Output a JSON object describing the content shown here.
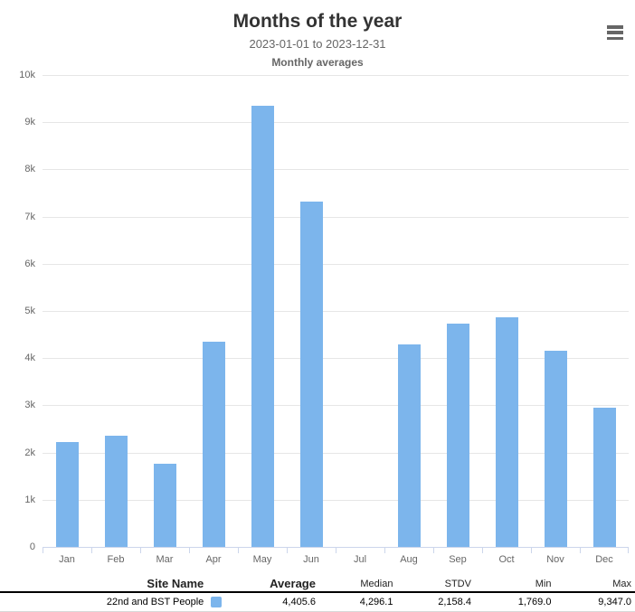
{
  "chart_data": {
    "type": "bar",
    "title": "Months of the year",
    "subtitle": "2023-01-01 to 2023-12-31",
    "annotation": "Monthly averages",
    "categories": [
      "Jan",
      "Feb",
      "Mar",
      "Apr",
      "May",
      "Jun",
      "Jul",
      "Aug",
      "Sep",
      "Oct",
      "Nov",
      "Dec"
    ],
    "series": [
      {
        "name": "22nd and BST People",
        "color": "#7cb5ec",
        "values": [
          2230,
          2360,
          1769,
          4350,
          9347,
          7320,
          null,
          4296,
          4730,
          4870,
          4160,
          2950
        ]
      }
    ],
    "xlabel": "",
    "ylabel": "",
    "ylim": [
      0,
      10000
    ],
    "ytick_interval": 1000,
    "ytick_labels": [
      "0",
      "1k",
      "2k",
      "3k",
      "4k",
      "5k",
      "6k",
      "7k",
      "8k",
      "9k",
      "10k"
    ],
    "grid": true,
    "legend_position": "none"
  },
  "menu": {
    "context_button": "chart-context-menu"
  },
  "table": {
    "headers": {
      "site_name": "Site Name",
      "average": "Average",
      "median": "Median",
      "stdv": "STDV",
      "min": "Min",
      "max": "Max"
    },
    "rows": [
      {
        "site_name": "22nd and BST People",
        "swatch_color": "#7cb5ec",
        "average": "4,405.6",
        "median": "4,296.1",
        "stdv": "2,158.4",
        "min": "1,769.0",
        "max": "9,347.0"
      }
    ]
  },
  "colors": {
    "bar": "#7cb5ec",
    "gridline": "#e6e6e6",
    "axis": "#ccd6eb",
    "label": "#666666",
    "title": "#333333"
  }
}
